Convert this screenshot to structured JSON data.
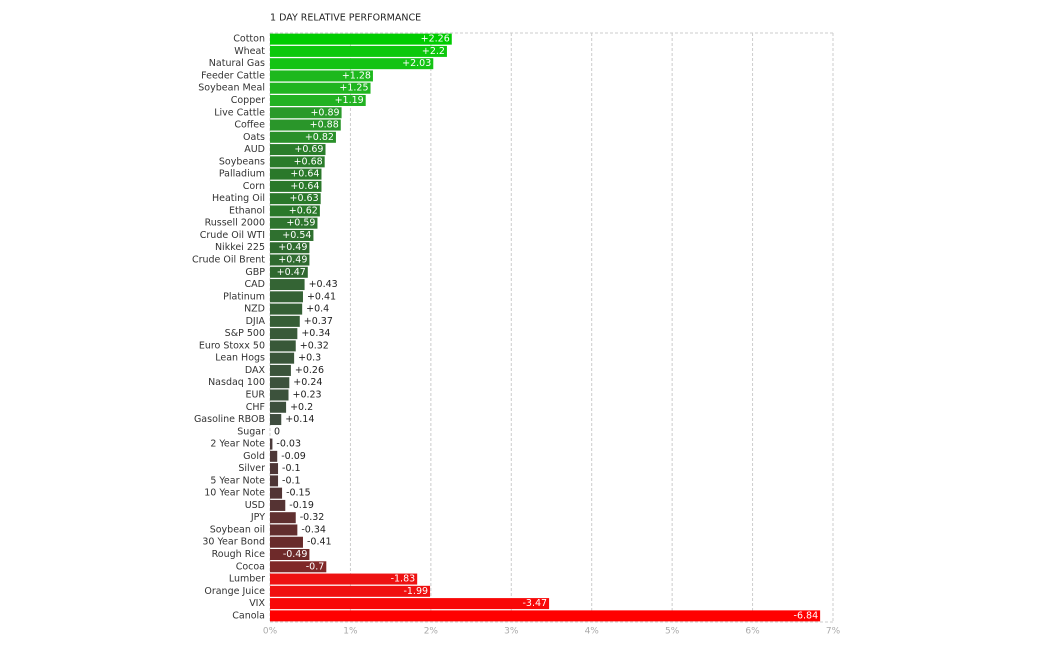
{
  "chart_data": {
    "type": "hbar",
    "title": "1 DAY RELATIVE PERFORMANCE",
    "categories": [
      "Cotton",
      "Wheat",
      "Natural Gas",
      "Feeder Cattle",
      "Soybean Meal",
      "Copper",
      "Live Cattle",
      "Coffee",
      "Oats",
      "AUD",
      "Soybeans",
      "Palladium",
      "Corn",
      "Heating Oil",
      "Ethanol",
      "Russell 2000",
      "Crude Oil WTI",
      "Nikkei 225",
      "Crude Oil Brent",
      "GBP",
      "CAD",
      "Platinum",
      "NZD",
      "DJIA",
      "S&P 500",
      "Euro Stoxx 50",
      "Lean Hogs",
      "DAX",
      "Nasdaq 100",
      "EUR",
      "CHF",
      "Gasoline RBOB",
      "Sugar",
      "2 Year Note",
      "Gold",
      "Silver",
      "5 Year Note",
      "10 Year Note",
      "USD",
      "JPY",
      "Soybean oil",
      "30 Year Bond",
      "Rough Rice",
      "Cocoa",
      "Lumber",
      "Orange Juice",
      "VIX",
      "Canola"
    ],
    "values": [
      2.26,
      2.2,
      2.03,
      1.28,
      1.25,
      1.19,
      0.89,
      0.88,
      0.82,
      0.69,
      0.68,
      0.64,
      0.64,
      0.63,
      0.62,
      0.59,
      0.54,
      0.49,
      0.49,
      0.47,
      0.43,
      0.41,
      0.4,
      0.37,
      0.34,
      0.32,
      0.3,
      0.26,
      0.24,
      0.23,
      0.2,
      0.14,
      0,
      -0.03,
      -0.09,
      -0.1,
      -0.1,
      -0.15,
      -0.19,
      -0.32,
      -0.34,
      -0.41,
      -0.49,
      -0.7,
      -1.83,
      -1.99,
      -3.47,
      -6.84
    ],
    "value_labels": [
      "+2.26",
      "+2.2",
      "+2.03",
      "+1.28",
      "+1.25",
      "+1.19",
      "+0.89",
      "+0.88",
      "+0.82",
      "+0.69",
      "+0.68",
      "+0.64",
      "+0.64",
      "+0.63",
      "+0.62",
      "+0.59",
      "+0.54",
      "+0.49",
      "+0.49",
      "+0.47",
      "+0.43",
      "+0.41",
      "+0.4",
      "+0.37",
      "+0.34",
      "+0.32",
      "+0.3",
      "+0.26",
      "+0.24",
      "+0.23",
      "+0.2",
      "+0.14",
      "0",
      "-0.03",
      "-0.09",
      "-0.1",
      "-0.1",
      "-0.15",
      "-0.19",
      "-0.32",
      "-0.34",
      "-0.41",
      "-0.49",
      "-0.7",
      "-1.83",
      "-1.99",
      "-3.47",
      "-6.84"
    ],
    "colors": [
      "#00cc00",
      "#0cc80c",
      "#14c314",
      "#1eb81e",
      "#20b520",
      "#22b222",
      "#2a9a2a",
      "#2a962a",
      "#2a902a",
      "#2a7d2a",
      "#2a7b2a",
      "#2a782a",
      "#2a782a",
      "#2a782a",
      "#2a782a",
      "#2e742e",
      "#2f702f",
      "#2f6a2f",
      "#2f6a2f",
      "#306830",
      "#346434",
      "#356235",
      "#356035",
      "#365e36",
      "#385a38",
      "#385838",
      "#3a563a",
      "#3b543b",
      "#3c523c",
      "#3c523c",
      "#3d503d",
      "#3e4c3e",
      "#444444",
      "#4a3a3a",
      "#4e3838",
      "#4e3636",
      "#4e3636",
      "#523434",
      "#553333",
      "#603030",
      "#622e2e",
      "#682c2c",
      "#6e2a2a",
      "#802828",
      "#ee1111",
      "#f01010",
      "#f80808",
      "#ff0000"
    ],
    "xlim": [
      0,
      7
    ],
    "xticks": [
      {
        "value": 0,
        "label": "0%"
      },
      {
        "value": 1,
        "label": "1%"
      },
      {
        "value": 2,
        "label": "2%"
      },
      {
        "value": 3,
        "label": "3%"
      },
      {
        "value": 4,
        "label": "4%"
      },
      {
        "value": 5,
        "label": "5%"
      },
      {
        "value": 6,
        "label": "6%"
      },
      {
        "value": 7,
        "label": "7%"
      }
    ],
    "grid": true
  }
}
